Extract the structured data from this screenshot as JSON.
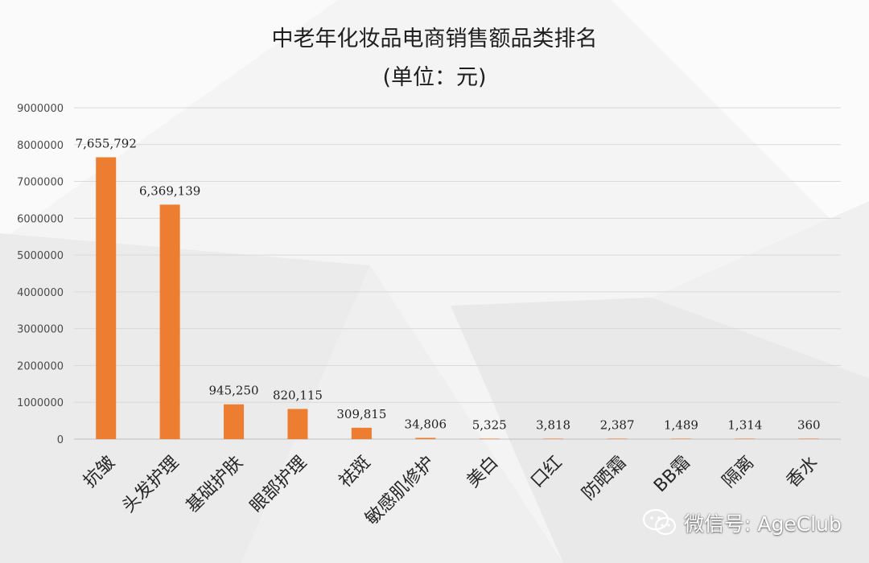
{
  "watermark": {
    "icon": "wechat-icon",
    "text": "微信号: AgeClub"
  },
  "chart_data": {
    "type": "bar",
    "title": "中老年化妆品电商销售额品类排名",
    "subtitle": "(单位：元)",
    "categories": [
      "抗皱",
      "头发护理",
      "基础护肤",
      "眼部护理",
      "祛斑",
      "敏感肌修护",
      "美白",
      "口红",
      "防晒霜",
      "BB霜",
      "隔离",
      "香水"
    ],
    "values": [
      7655792,
      6369139,
      945250,
      820115,
      309815,
      34806,
      5325,
      3818,
      2387,
      1489,
      1314,
      360
    ],
    "data_labels": [
      "7,655,792",
      "6,369,139",
      "945,250",
      "820,115",
      "309,815",
      "34,806",
      "5,325",
      "3,818",
      "2,387",
      "1,489",
      "1,314",
      "360"
    ],
    "ylim": [
      0,
      9000000
    ],
    "yticks": [
      0,
      1000000,
      2000000,
      3000000,
      4000000,
      5000000,
      6000000,
      7000000,
      8000000,
      9000000
    ],
    "ytick_labels": [
      "0",
      "1000000",
      "2000000",
      "3000000",
      "4000000",
      "5000000",
      "6000000",
      "7000000",
      "8000000",
      "9000000"
    ],
    "bar_color": "#ed7d31",
    "grid": true,
    "legend": "none"
  }
}
